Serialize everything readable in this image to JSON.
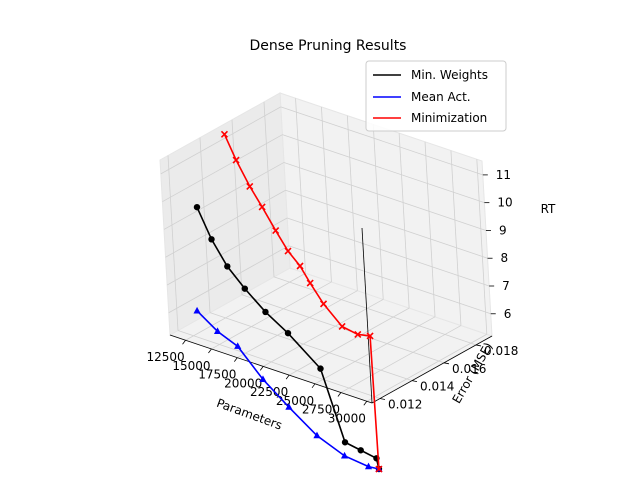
{
  "chart_data": {
    "type": "line",
    "projection": "3d",
    "title": "Dense Pruning Results",
    "xlabel": "Parameters",
    "ylabel": "Error (MSE)",
    "zlabel": "RT",
    "xlim": [
      11000,
      30500
    ],
    "ylim": [
      0.0115,
      0.019
    ],
    "zlim": [
      5.2,
      11.5
    ],
    "x_ticks": [
      "12500",
      "15000",
      "17500",
      "20000",
      "22500",
      "25000",
      "27500",
      "30000"
    ],
    "y_ticks": [
      "0.012",
      "0.014",
      "0.016",
      "0.018"
    ],
    "z_ticks": [
      "6",
      "7",
      "8",
      "9",
      "10",
      "11"
    ],
    "grid": true,
    "legend": "top-right",
    "series": [
      {
        "name": "Min. Weights",
        "color": "#000000",
        "marker": "circle",
        "points": [
          {
            "x": 12750,
            "y": 0.0125,
            "z": 9.7
          },
          {
            "x": 14000,
            "y": 0.0125,
            "z": 8.7
          },
          {
            "x": 15400,
            "y": 0.0125,
            "z": 7.9
          },
          {
            "x": 17000,
            "y": 0.0125,
            "z": 7.3
          },
          {
            "x": 18900,
            "y": 0.0125,
            "z": 6.7
          },
          {
            "x": 21000,
            "y": 0.0125,
            "z": 6.2
          },
          {
            "x": 24000,
            "y": 0.0125,
            "z": 5.3
          },
          {
            "x": 26000,
            "y": 0.0125,
            "z": 2.9
          },
          {
            "x": 27500,
            "y": 0.0125,
            "z": 2.8
          },
          {
            "x": 29000,
            "y": 0.0125,
            "z": 2.7
          },
          {
            "x": 30000,
            "y": 0.012,
            "z": 2.6
          }
        ]
      },
      {
        "name": "Mean Act.",
        "color": "#0000ff",
        "marker": "triangle",
        "points": [
          {
            "x": 12500,
            "y": 0.0123,
            "z": 6.0
          },
          {
            "x": 14400,
            "y": 0.0123,
            "z": 5.5
          },
          {
            "x": 16300,
            "y": 0.0123,
            "z": 5.2
          },
          {
            "x": 18600,
            "y": 0.0123,
            "z": 4.3
          },
          {
            "x": 21000,
            "y": 0.0123,
            "z": 3.6
          },
          {
            "x": 23600,
            "y": 0.0123,
            "z": 2.9
          },
          {
            "x": 26200,
            "y": 0.0123,
            "z": 2.5
          },
          {
            "x": 28500,
            "y": 0.0123,
            "z": 2.4
          },
          {
            "x": 30000,
            "y": 0.012,
            "z": 2.6
          }
        ]
      },
      {
        "name": "Minimization",
        "color": "#ff0000",
        "marker": "x",
        "points": [
          {
            "x": 11800,
            "y": 0.015,
            "z": 11.4
          },
          {
            "x": 12800,
            "y": 0.015,
            "z": 10.6
          },
          {
            "x": 14000,
            "y": 0.015,
            "z": 9.8
          },
          {
            "x": 15100,
            "y": 0.015,
            "z": 9.2
          },
          {
            "x": 16300,
            "y": 0.015,
            "z": 8.5
          },
          {
            "x": 17400,
            "y": 0.015,
            "z": 7.9
          },
          {
            "x": 18500,
            "y": 0.015,
            "z": 7.5
          },
          {
            "x": 19400,
            "y": 0.015,
            "z": 7.0
          },
          {
            "x": 20600,
            "y": 0.015,
            "z": 6.4
          },
          {
            "x": 22300,
            "y": 0.015,
            "z": 5.8
          },
          {
            "x": 23800,
            "y": 0.015,
            "z": 5.7
          },
          {
            "x": 25000,
            "y": 0.015,
            "z": 5.8
          },
          {
            "x": 30000,
            "y": 0.012,
            "z": 2.6
          }
        ]
      }
    ]
  }
}
